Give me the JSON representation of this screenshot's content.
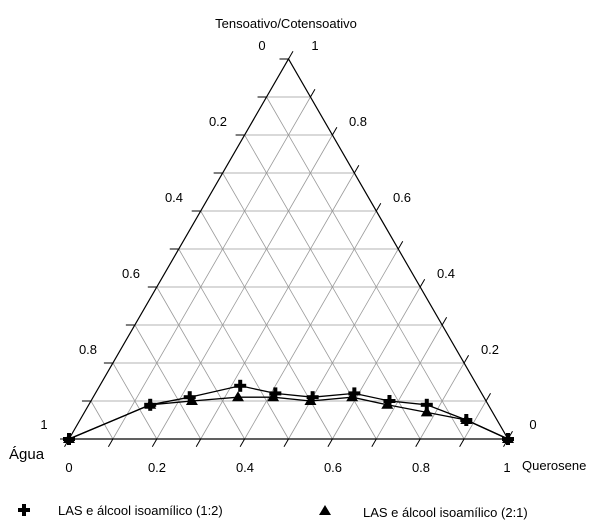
{
  "chart_data": {
    "type": "scatter",
    "subtype": "ternary",
    "axes": {
      "top": "Tensoativo/Cotensoativo",
      "left": "Água",
      "right": "Querosene"
    },
    "ticks": [
      "0",
      "0.2",
      "0.4",
      "0.6",
      "0.8",
      "1"
    ],
    "grid": true,
    "grid_step": 0.1,
    "legend_position": "bottom",
    "series": [
      {
        "name": "LAS e álcool isoamílico (1:2)",
        "marker": "plus",
        "color": "#000000",
        "points": [
          {
            "querosene": 0.0,
            "tensoativo": 0.0
          },
          {
            "querosene": 0.14,
            "tensoativo": 0.09
          },
          {
            "querosene": 0.22,
            "tensoativo": 0.11
          },
          {
            "querosene": 0.32,
            "tensoativo": 0.14
          },
          {
            "querosene": 0.41,
            "tensoativo": 0.12
          },
          {
            "querosene": 0.5,
            "tensoativo": 0.11
          },
          {
            "querosene": 0.59,
            "tensoativo": 0.12
          },
          {
            "querosene": 0.68,
            "tensoativo": 0.1
          },
          {
            "querosene": 0.77,
            "tensoativo": 0.09
          },
          {
            "querosene": 0.88,
            "tensoativo": 0.05
          },
          {
            "querosene": 1.0,
            "tensoativo": 0.0
          }
        ]
      },
      {
        "name": "LAS e álcool isoamílico (2:1)",
        "marker": "triangle",
        "color": "#000000",
        "points": [
          {
            "querosene": 0.0,
            "tensoativo": 0.0
          },
          {
            "querosene": 0.14,
            "tensoativo": 0.09
          },
          {
            "querosene": 0.23,
            "tensoativo": 0.1
          },
          {
            "querosene": 0.33,
            "tensoativo": 0.11
          },
          {
            "querosene": 0.41,
            "tensoativo": 0.11
          },
          {
            "querosene": 0.5,
            "tensoativo": 0.1
          },
          {
            "querosene": 0.59,
            "tensoativo": 0.11
          },
          {
            "querosene": 0.68,
            "tensoativo": 0.09
          },
          {
            "querosene": 0.78,
            "tensoativo": 0.07
          },
          {
            "querosene": 0.88,
            "tensoativo": 0.05
          },
          {
            "querosene": 1.0,
            "tensoativo": 0.0
          }
        ]
      }
    ]
  }
}
